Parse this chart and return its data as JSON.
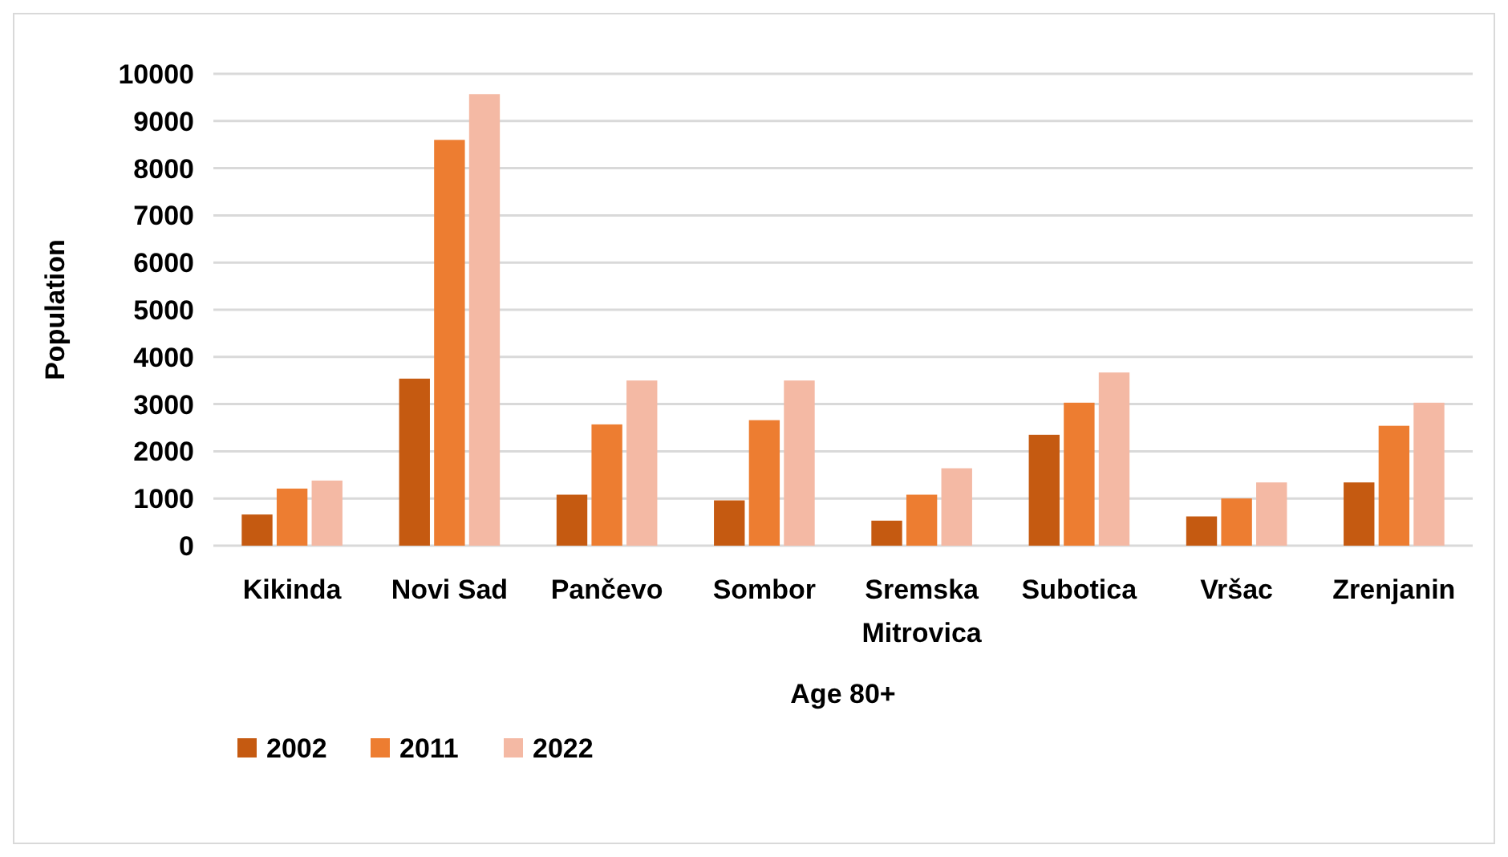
{
  "chart_data": {
    "type": "bar",
    "xlabel": "Age 80+",
    "ylabel": "Population",
    "categories": [
      "Kikinda",
      "Novi Sad",
      "Pančevo",
      "Sombor",
      "Sremska Mitrovica",
      "Subotica",
      "Vršac",
      "Zrenjanin"
    ],
    "series": [
      {
        "name": "2002",
        "color": "#c55a11",
        "values": [
          660,
          3540,
          1080,
          960,
          530,
          2350,
          620,
          1340
        ]
      },
      {
        "name": "2011",
        "color": "#ed7d31",
        "values": [
          1210,
          8600,
          2570,
          2660,
          1080,
          3030,
          1000,
          2540
        ]
      },
      {
        "name": "2022",
        "color": "#f4b9a4",
        "values": [
          1380,
          9570,
          3500,
          3500,
          1640,
          3670,
          1340,
          3030
        ]
      }
    ],
    "ylim": [
      0,
      10000
    ],
    "yticks": [
      0,
      1000,
      2000,
      3000,
      4000,
      5000,
      6000,
      7000,
      8000,
      9000,
      10000
    ],
    "grid": "y",
    "legend": "bottom left"
  }
}
